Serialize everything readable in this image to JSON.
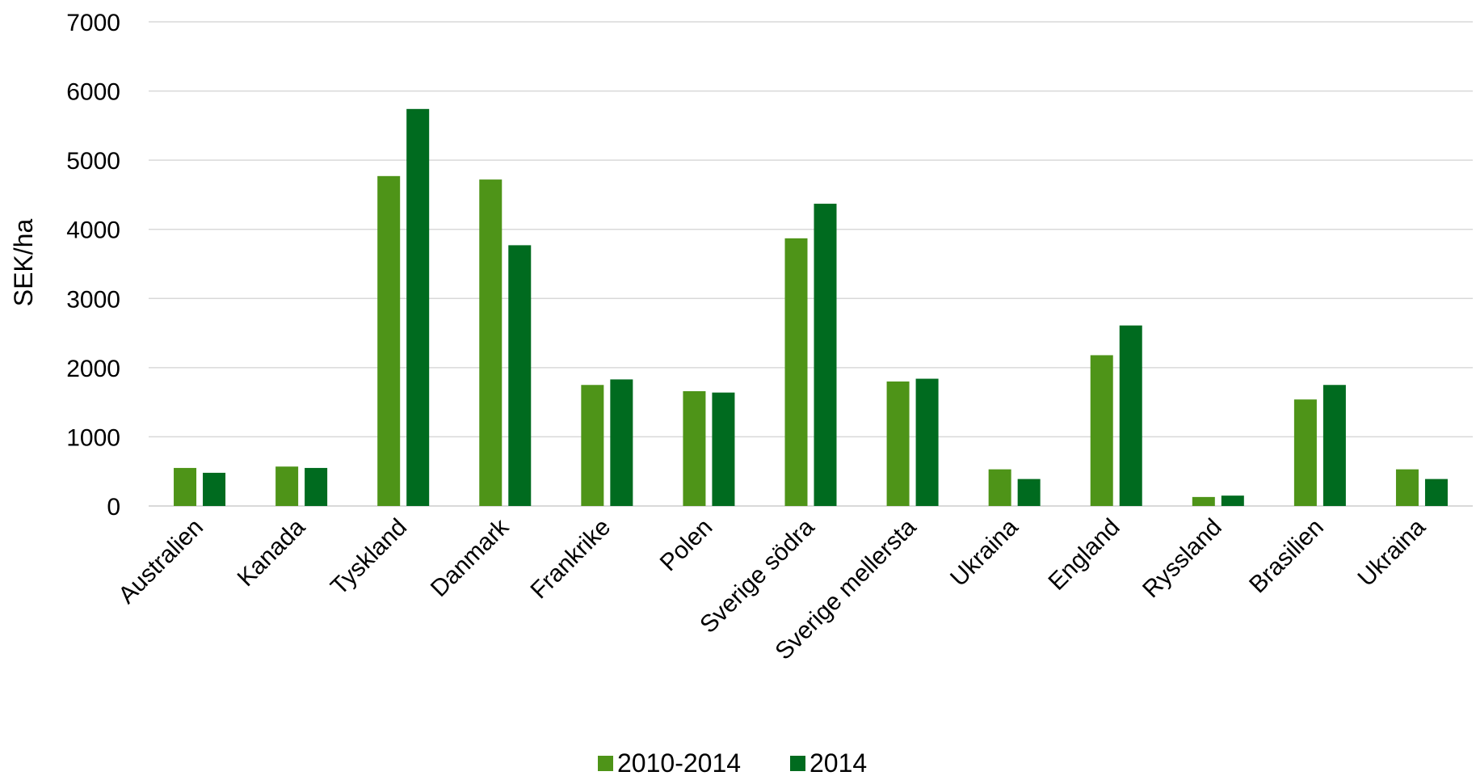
{
  "chart_data": {
    "type": "bar",
    "title": "",
    "xlabel": "",
    "ylabel": "SEK/ha",
    "ylim": [
      0,
      7000
    ],
    "yticks": [
      "0",
      "1000",
      "2000",
      "3000",
      "4000",
      "5000",
      "6000",
      "7000"
    ],
    "grid": true,
    "legend_position": "bottom",
    "categories": [
      "Australien",
      "Kanada",
      "Tyskland",
      "Danmark",
      "Frankrike",
      "Polen",
      "Sverige södra",
      "Sverige mellersta",
      "Ukraina",
      "England",
      "Ryssland",
      "Brasilien",
      "Ukraina"
    ],
    "series": [
      {
        "name": "2010-2014",
        "color": "#4e9418",
        "values": [
          550,
          570,
          4770,
          4720,
          1750,
          1660,
          3870,
          1800,
          530,
          2180,
          130,
          1540,
          530
        ]
      },
      {
        "name": "2014",
        "color": "#006b1f",
        "values": [
          480,
          550,
          5740,
          3770,
          1830,
          1640,
          4370,
          1840,
          390,
          2610,
          150,
          1750,
          390
        ]
      }
    ]
  }
}
